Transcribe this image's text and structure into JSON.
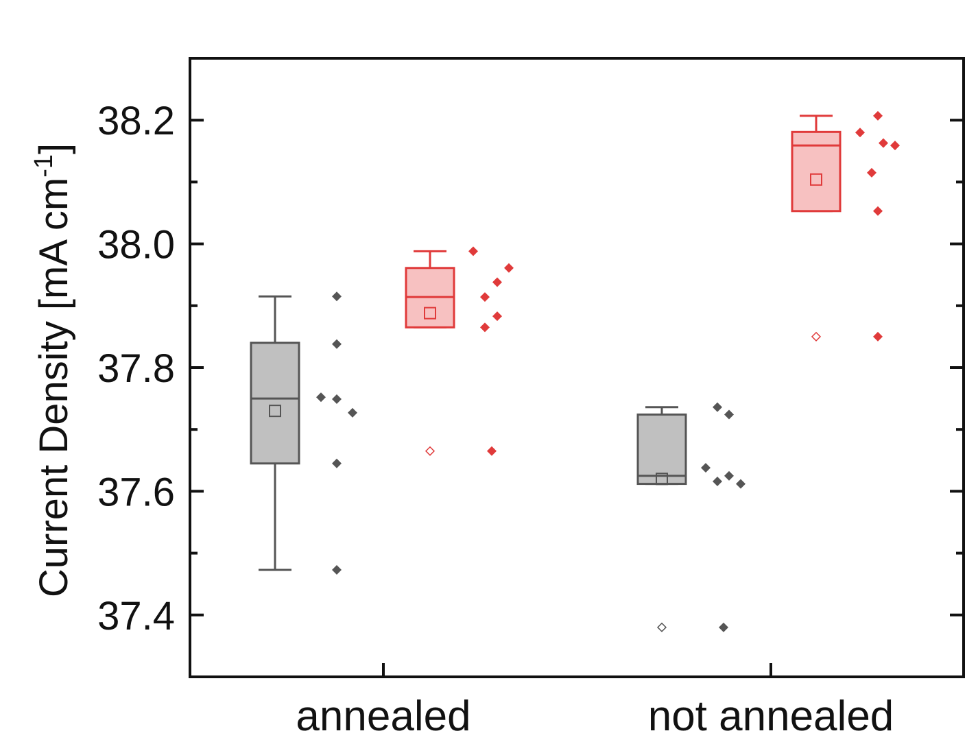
{
  "chart_data": {
    "type": "box",
    "ylabel": "Current Density [mA cm",
    "ylabel_superscript": "-1",
    "ylabel_close": "]",
    "ylim": [
      37.3,
      38.3
    ],
    "yticks": [
      37.4,
      37.6,
      37.8,
      38.0,
      38.2
    ],
    "ytick_labels": [
      "37.4",
      "37.6",
      "37.8",
      "38.0",
      "38.2"
    ],
    "yminor_ticks": [
      37.5,
      37.7,
      37.9,
      38.1
    ],
    "categories": [
      "annealed",
      "not annealed"
    ],
    "colors": {
      "gray": "#555555",
      "gray_fill": "#c0c0c0",
      "red": "#e03a3a",
      "red_fill": "#f7c1c1",
      "axis": "#111111"
    },
    "boxes": [
      {
        "category": "annealed",
        "color": "gray",
        "whisker_low": 37.473,
        "q1": 37.645,
        "median": 37.75,
        "q3": 37.84,
        "whisker_high": 37.915,
        "mean": 37.73,
        "outlier": null,
        "points": [
          37.915,
          37.838,
          37.752,
          37.749,
          37.727,
          37.645,
          37.473
        ]
      },
      {
        "category": "annealed",
        "color": "red",
        "whisker_low": 37.865,
        "q1": 37.865,
        "median": 37.914,
        "q3": 37.961,
        "whisker_high": 37.988,
        "mean": 37.888,
        "outlier": 37.665,
        "points": [
          37.988,
          37.961,
          37.938,
          37.914,
          37.883,
          37.865,
          37.665
        ]
      },
      {
        "category": "not annealed",
        "color": "gray",
        "whisker_low": 37.612,
        "q1": 37.612,
        "median": 37.625,
        "q3": 37.724,
        "whisker_high": 37.736,
        "mean": 37.62,
        "outlier": 37.38,
        "points": [
          37.736,
          37.724,
          37.638,
          37.625,
          37.616,
          37.612,
          37.38
        ]
      },
      {
        "category": "not annealed",
        "color": "red",
        "whisker_low": 38.053,
        "q1": 38.053,
        "median": 38.159,
        "q3": 38.181,
        "whisker_high": 38.207,
        "mean": 38.104,
        "outlier": 37.85,
        "points": [
          38.207,
          38.18,
          38.163,
          38.159,
          38.115,
          38.053,
          37.85
        ]
      }
    ]
  }
}
